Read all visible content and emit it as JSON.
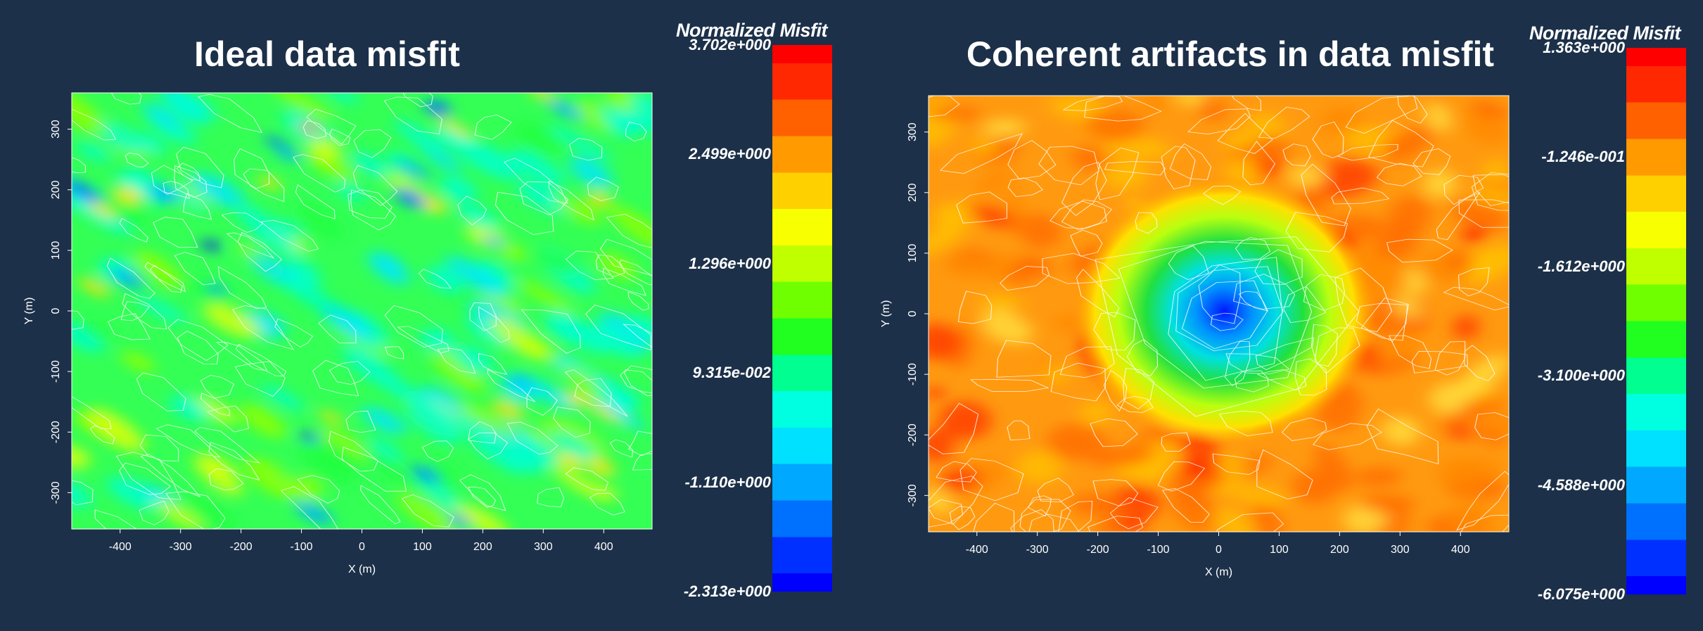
{
  "chart_data": [
    {
      "type": "heatmap",
      "title": "Ideal data misfit",
      "xlabel": "X (m)",
      "ylabel": "Y (m)",
      "x_ticks": [
        "-400",
        "-300",
        "-200",
        "-100",
        "0",
        "100",
        "200",
        "300",
        "400"
      ],
      "y_ticks": [
        "300",
        "200",
        "100",
        "0",
        "-100",
        "-200",
        "-300"
      ],
      "xlim": [
        -480,
        480
      ],
      "ylim": [
        -360,
        360
      ],
      "colorbar": {
        "title": "Normalized Misfit",
        "min": -2.313,
        "max": 3.702,
        "labels": [
          "3.702e+000",
          "2.499e+000",
          "1.296e+000",
          "9.315e-002",
          "-1.110e+000",
          "-2.313e+000"
        ]
      },
      "pattern": "mostly green/cyan field with diagonal blue and yellow streaks"
    },
    {
      "type": "heatmap",
      "title": "Coherent artifacts in data misfit",
      "xlabel": "X (m)",
      "ylabel": "Y (m)",
      "x_ticks": [
        "-400",
        "-300",
        "-200",
        "-100",
        "0",
        "100",
        "200",
        "300",
        "400"
      ],
      "y_ticks": [
        "300",
        "200",
        "100",
        "0",
        "-100",
        "-200",
        "-300"
      ],
      "xlim": [
        -480,
        480
      ],
      "ylim": [
        -360,
        360
      ],
      "colorbar": {
        "title": "Normalized Misfit",
        "min": -6.075,
        "max": 1.363,
        "labels": [
          "1.363e+000",
          "-1.246e-001",
          "-1.612e+000",
          "-3.100e+000",
          "-4.588e+000",
          "-6.075e+000"
        ]
      },
      "pattern": "orange/red field with a strong blue minimum centred near (0, 0)"
    }
  ]
}
